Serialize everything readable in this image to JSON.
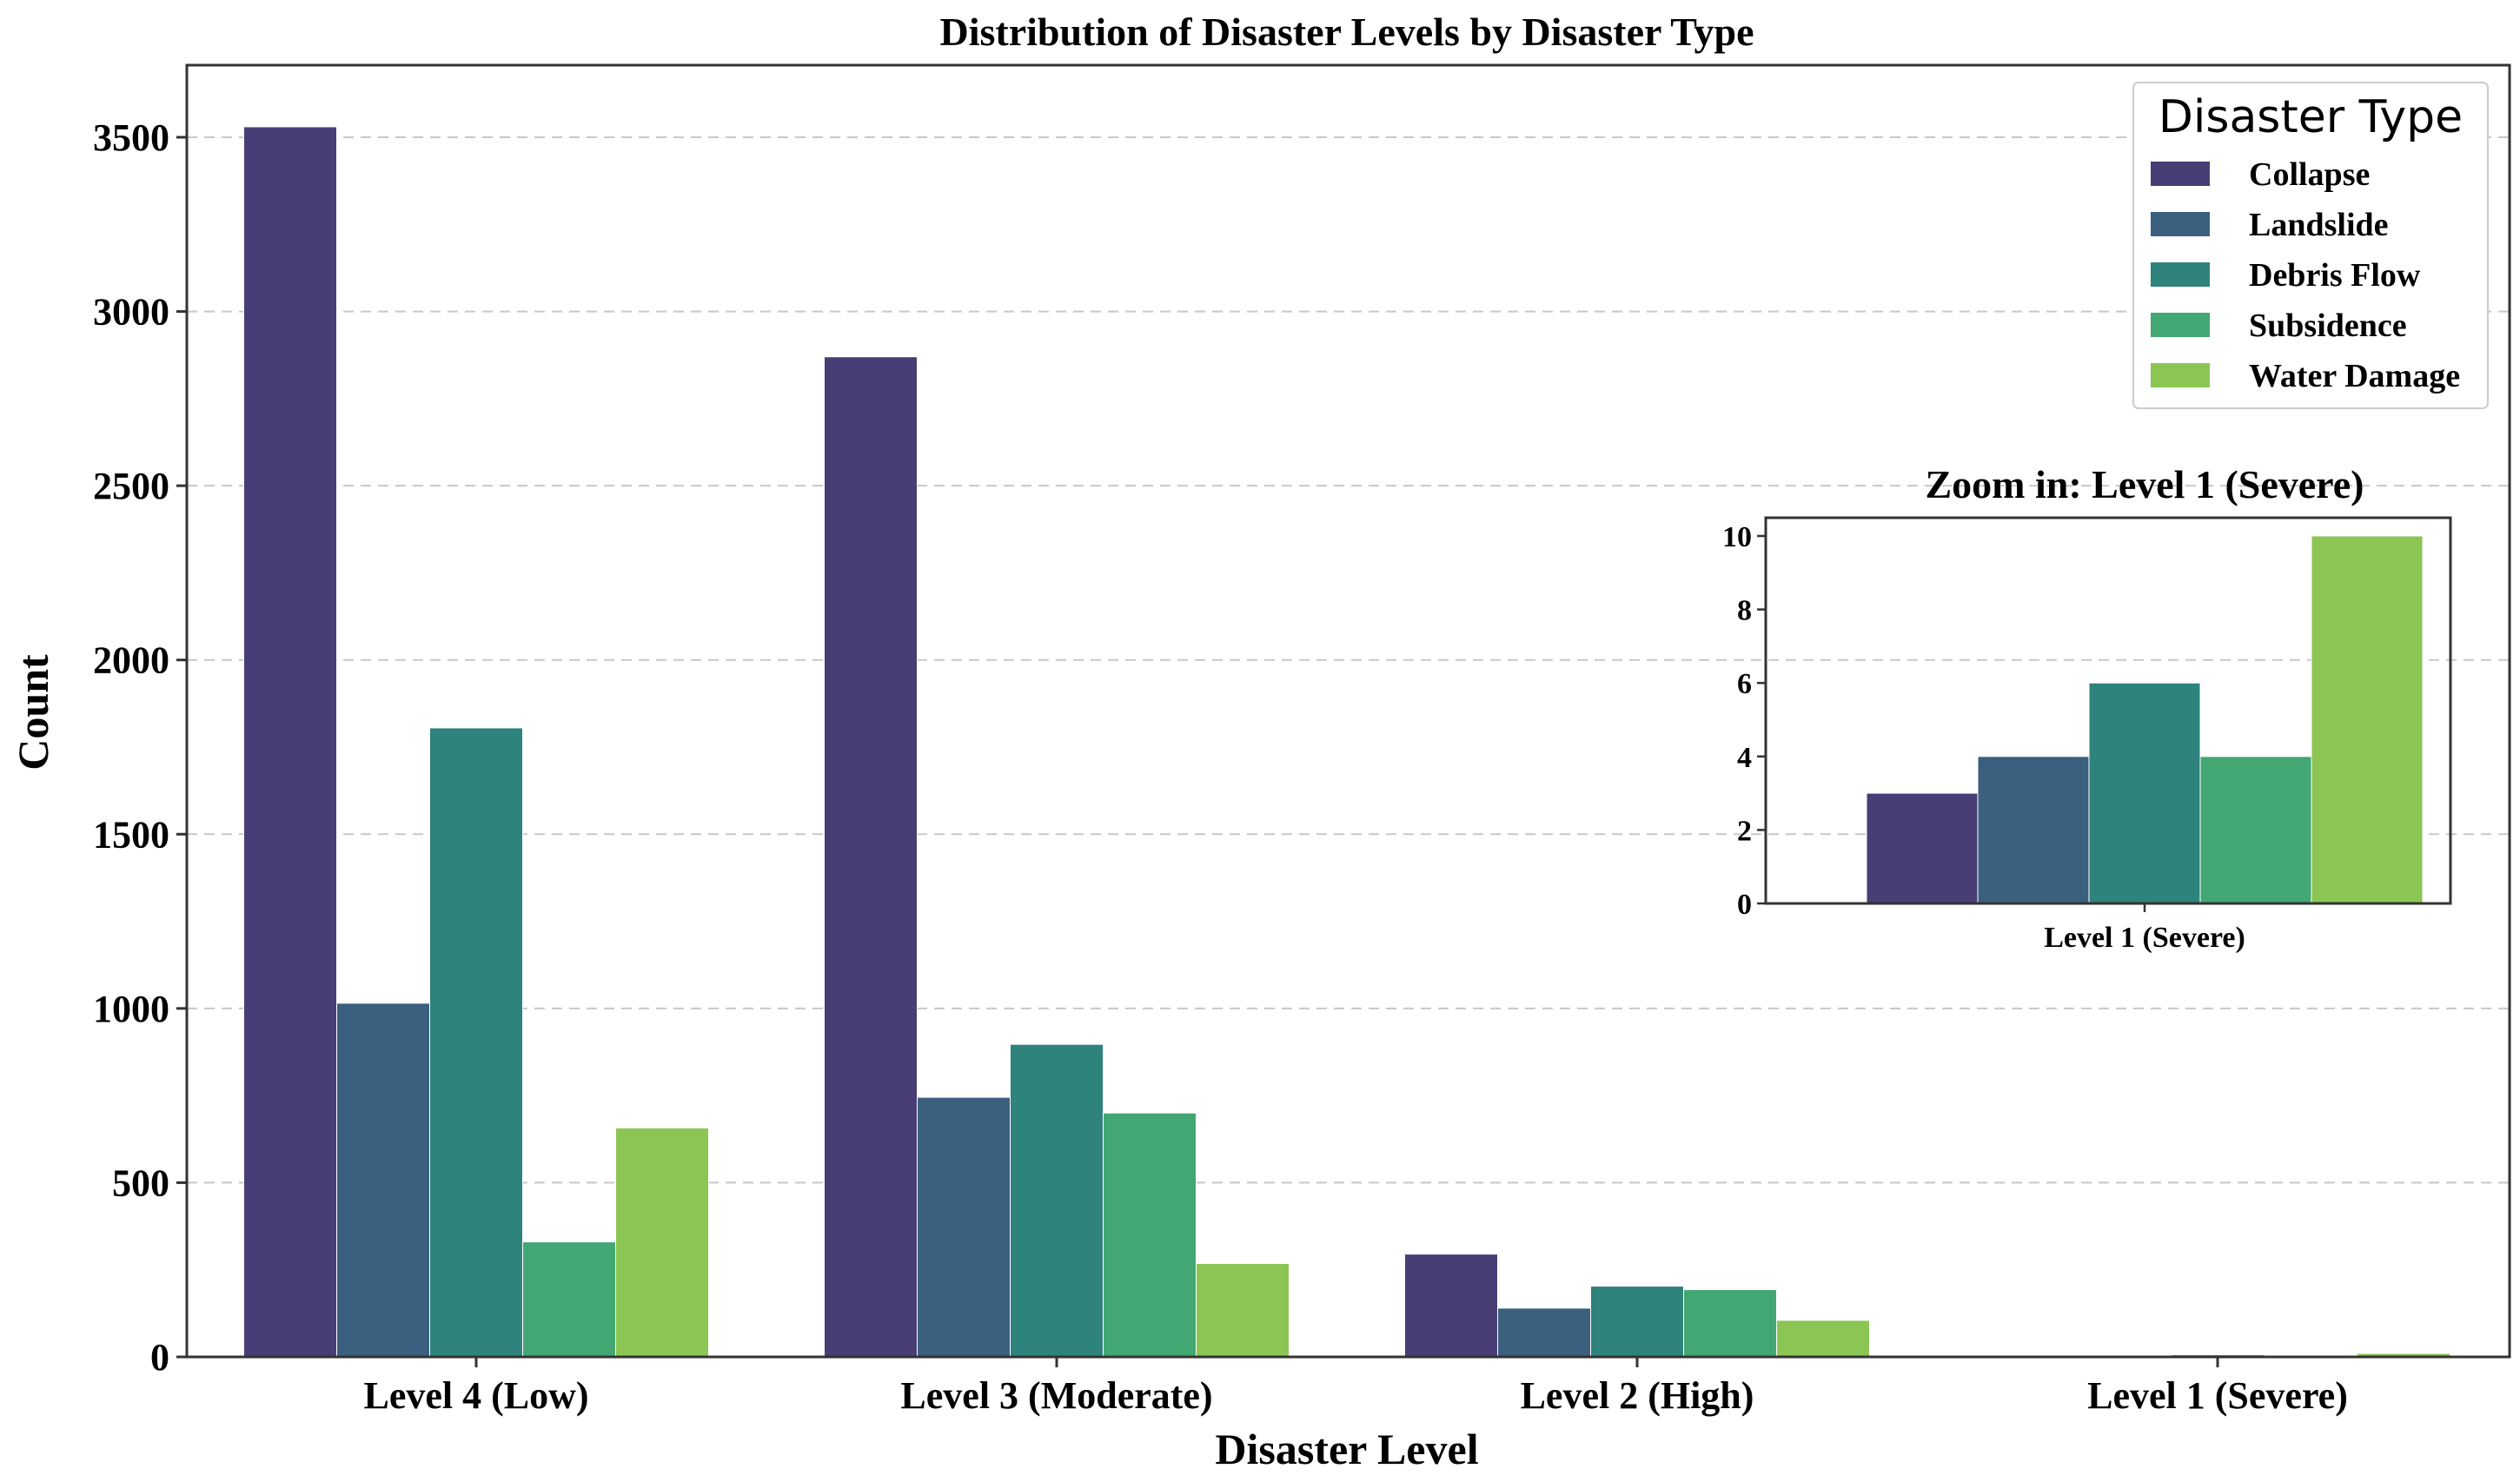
{
  "chart_data": [
    {
      "type": "bar",
      "title": "Distribution of Disaster Levels by Disaster Type",
      "xlabel": "Disaster Level",
      "ylabel": "Count",
      "ylim": [
        0,
        3650
      ],
      "yticks": [
        0,
        500,
        1000,
        1500,
        2000,
        2500,
        3000,
        3500
      ],
      "grid": "y-dashed",
      "categories": [
        "Level 4 (Low)",
        "Level 3 (Moderate)",
        "Level 2 (High)",
        "Level 1 (Severe)"
      ],
      "legend": {
        "title": "Disaster Type",
        "position": "top-right"
      },
      "series": [
        {
          "name": "Collapse",
          "color": "#483D74",
          "values": [
            3530,
            2870,
            295,
            3
          ]
        },
        {
          "name": "Landslide",
          "color": "#3B5F7F",
          "values": [
            1015,
            745,
            140,
            4
          ]
        },
        {
          "name": "Debris Flow",
          "color": "#2E837C",
          "values": [
            1805,
            897,
            203,
            6
          ]
        },
        {
          "name": "Subsidence",
          "color": "#43A773",
          "values": [
            330,
            700,
            193,
            4
          ]
        },
        {
          "name": "Water Damage",
          "color": "#8BC554",
          "values": [
            657,
            268,
            105,
            10
          ]
        }
      ]
    },
    {
      "type": "bar",
      "title": "Zoom in: Level 1 (Severe)",
      "categories": [
        "Level 1 (Severe)"
      ],
      "ylim": [
        0,
        10.5
      ],
      "yticks": [
        0,
        2,
        4,
        6,
        8,
        10
      ],
      "series": [
        {
          "name": "Collapse",
          "color": "#483D74",
          "values": [
            3
          ]
        },
        {
          "name": "Landslide",
          "color": "#3B5F7F",
          "values": [
            4
          ]
        },
        {
          "name": "Debris Flow",
          "color": "#2E837C",
          "values": [
            6
          ]
        },
        {
          "name": "Subsidence",
          "color": "#43A773",
          "values": [
            4
          ]
        },
        {
          "name": "Water Damage",
          "color": "#8BC554",
          "values": [
            10
          ]
        }
      ]
    }
  ]
}
